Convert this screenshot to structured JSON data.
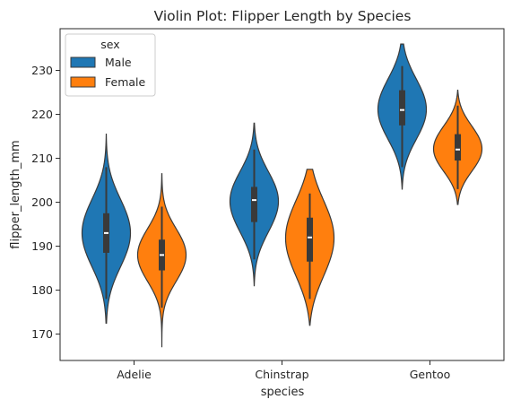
{
  "chart_data": {
    "type": "violin",
    "title": "Violin Plot: Flipper Length by Species",
    "xlabel": "species",
    "ylabel": "flipper_length_mm",
    "categories": [
      "Adelie",
      "Chinstrap",
      "Gentoo"
    ],
    "ylim": [
      164,
      239.5
    ],
    "yticks": [
      170,
      180,
      190,
      200,
      210,
      220,
      230
    ],
    "grid": false,
    "legend": {
      "title": "sex",
      "placement": "top-left"
    },
    "series": [
      {
        "name": "Male",
        "color": "#1f77b4",
        "stats": [
          {
            "q1": 188.5,
            "median": 193,
            "q3": 197.5,
            "whisker_low": 178,
            "whisker_high": 208,
            "kde_min": 172.5,
            "kde_max": 215.5
          },
          {
            "q1": 195.5,
            "median": 200.5,
            "q3": 203.5,
            "whisker_low": 187,
            "whisker_high": 212,
            "kde_min": 181,
            "kde_max": 218
          },
          {
            "q1": 217.5,
            "median": 221,
            "q3": 225.5,
            "whisker_low": 208,
            "whisker_high": 231,
            "kde_min": 203,
            "kde_max": 236
          }
        ]
      },
      {
        "name": "Female",
        "color": "#ff7f0e",
        "stats": [
          {
            "q1": 184.5,
            "median": 188,
            "q3": 191.5,
            "whisker_low": 176,
            "whisker_high": 199,
            "kde_min": 167,
            "kde_max": 206.5
          },
          {
            "q1": 186.5,
            "median": 192,
            "q3": 196.5,
            "whisker_low": 178,
            "whisker_high": 202,
            "kde_min": 172,
            "kde_max": 207.5
          },
          {
            "q1": 209.5,
            "median": 212,
            "q3": 215.5,
            "whisker_low": 203,
            "whisker_high": 222,
            "kde_min": 199.5,
            "kde_max": 225.5
          }
        ]
      }
    ]
  }
}
